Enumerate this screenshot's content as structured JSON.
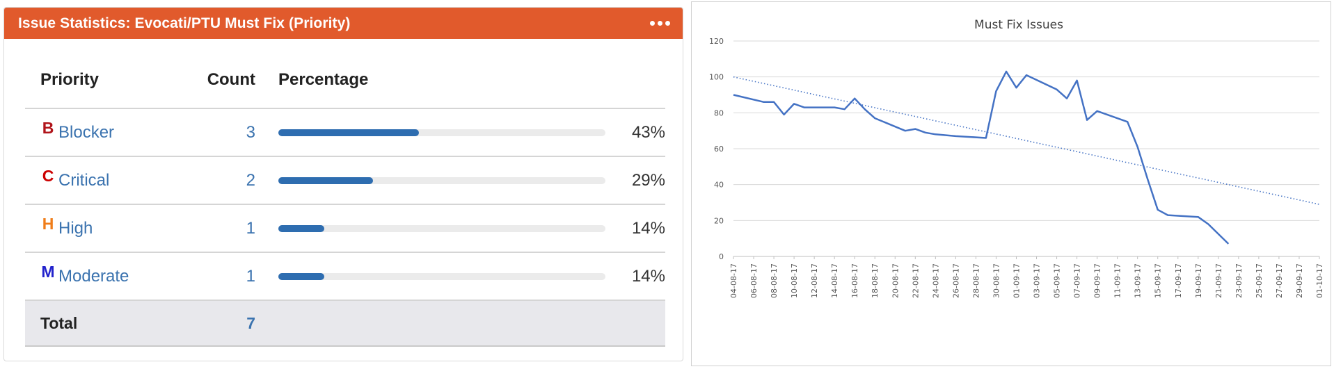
{
  "gadget": {
    "title": "Issue Statistics: Evocati/PTU Must Fix (Priority)",
    "menu_icon": "more-horizontal-icon",
    "header_color": "#e15a2c",
    "columns": {
      "priority": "Priority",
      "count": "Count",
      "percentage": "Percentage"
    },
    "rows": [
      {
        "letter": "B",
        "letter_color": "#b0141a",
        "name": "Blocker",
        "count": "3",
        "percent": "43%",
        "fraction": 0.43
      },
      {
        "letter": "C",
        "letter_color": "#cc0000",
        "name": "Critical",
        "count": "2",
        "percent": "29%",
        "fraction": 0.29
      },
      {
        "letter": "H",
        "letter_color": "#ef7d1a",
        "name": "High",
        "count": "1",
        "percent": "14%",
        "fraction": 0.14
      },
      {
        "letter": "M",
        "letter_color": "#2222cc",
        "name": "Moderate",
        "count": "1",
        "percent": "14%",
        "fraction": 0.14
      }
    ],
    "total": {
      "label": "Total",
      "count": "7"
    },
    "bar_color": "#2e6db0"
  },
  "chart_data": {
    "type": "line",
    "title": "Must Fix Issues",
    "xlabel": "",
    "ylabel": "",
    "ylim": [
      0,
      120
    ],
    "yticks": [
      0,
      20,
      40,
      60,
      80,
      100,
      120
    ],
    "grid": true,
    "legend": "none",
    "x_tick_labels": [
      "04-08-17",
      "06-08-17",
      "08-08-17",
      "10-08-17",
      "12-08-17",
      "14-08-17",
      "16-08-17",
      "18-08-17",
      "20-08-17",
      "22-08-17",
      "24-08-17",
      "26-08-17",
      "28-08-17",
      "30-08-17",
      "01-09-17",
      "03-09-17",
      "05-09-17",
      "07-09-17",
      "09-09-17",
      "11-09-17",
      "13-09-17",
      "15-09-17",
      "17-09-17",
      "19-09-17",
      "21-09-17",
      "23-09-17",
      "25-09-17",
      "27-09-17",
      "29-09-17",
      "01-10-17"
    ],
    "series": [
      {
        "color": "#4472c4",
        "style": "solid",
        "points": [
          [
            "04-08-17",
            90
          ],
          [
            "07-08-17",
            86
          ],
          [
            "08-08-17",
            86
          ],
          [
            "09-08-17",
            79
          ],
          [
            "10-08-17",
            85
          ],
          [
            "11-08-17",
            83
          ],
          [
            "14-08-17",
            83
          ],
          [
            "15-08-17",
            82
          ],
          [
            "16-08-17",
            88
          ],
          [
            "17-08-17",
            82
          ],
          [
            "18-08-17",
            77
          ],
          [
            "21-08-17",
            70
          ],
          [
            "22-08-17",
            71
          ],
          [
            "23-08-17",
            69
          ],
          [
            "24-08-17",
            68
          ],
          [
            "26-08-17",
            67
          ],
          [
            "29-08-17",
            66
          ],
          [
            "30-08-17",
            92
          ],
          [
            "31-08-17",
            103
          ],
          [
            "01-09-17",
            94
          ],
          [
            "02-09-17",
            101
          ],
          [
            "05-09-17",
            93
          ],
          [
            "06-09-17",
            88
          ],
          [
            "07-09-17",
            98
          ],
          [
            "08-09-17",
            76
          ],
          [
            "09-09-17",
            81
          ],
          [
            "12-09-17",
            75
          ],
          [
            "13-09-17",
            61
          ],
          [
            "14-09-17",
            43
          ],
          [
            "15-09-17",
            26
          ],
          [
            "16-09-17",
            23
          ],
          [
            "19-09-17",
            22
          ],
          [
            "20-09-17",
            18
          ],
          [
            "22-09-17",
            7
          ]
        ]
      },
      {
        "color": "#4472c4",
        "style": "dotted",
        "points": [
          [
            "04-08-17",
            100
          ],
          [
            "01-10-17",
            29
          ]
        ]
      }
    ]
  }
}
